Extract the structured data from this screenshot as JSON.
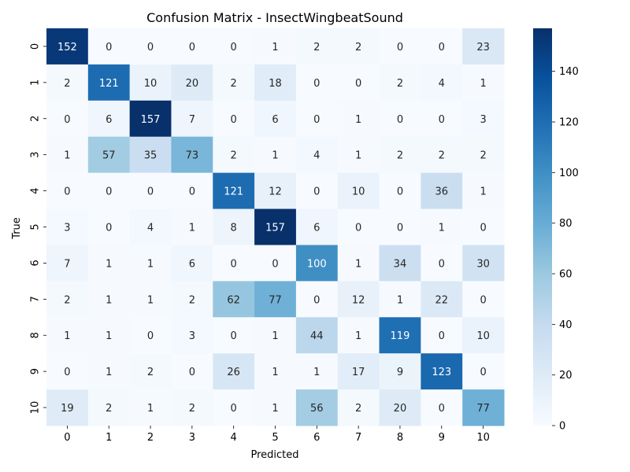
{
  "chart_data": {
    "type": "heatmap",
    "title": "Confusion Matrix - InsectWingbeatSound",
    "xlabel": "Predicted",
    "ylabel": "True",
    "x_categories": [
      "0",
      "1",
      "2",
      "3",
      "4",
      "5",
      "6",
      "7",
      "8",
      "9",
      "10"
    ],
    "y_categories": [
      "0",
      "1",
      "2",
      "3",
      "4",
      "5",
      "6",
      "7",
      "8",
      "9",
      "10"
    ],
    "matrix": [
      [
        152,
        0,
        0,
        0,
        0,
        1,
        2,
        2,
        0,
        0,
        23
      ],
      [
        2,
        121,
        10,
        20,
        2,
        18,
        0,
        0,
        2,
        4,
        1
      ],
      [
        0,
        6,
        157,
        7,
        0,
        6,
        0,
        1,
        0,
        0,
        3
      ],
      [
        1,
        57,
        35,
        73,
        2,
        1,
        4,
        1,
        2,
        2,
        2
      ],
      [
        0,
        0,
        0,
        0,
        121,
        12,
        0,
        10,
        0,
        36,
        1
      ],
      [
        3,
        0,
        4,
        1,
        8,
        157,
        6,
        0,
        0,
        1,
        0
      ],
      [
        7,
        1,
        1,
        6,
        0,
        0,
        100,
        1,
        34,
        0,
        30
      ],
      [
        2,
        1,
        1,
        2,
        62,
        77,
        0,
        12,
        1,
        22,
        0
      ],
      [
        1,
        1,
        0,
        3,
        0,
        1,
        44,
        1,
        119,
        0,
        10
      ],
      [
        0,
        1,
        2,
        0,
        26,
        1,
        1,
        17,
        9,
        123,
        0
      ],
      [
        19,
        2,
        1,
        2,
        0,
        1,
        56,
        2,
        20,
        0,
        77
      ]
    ],
    "vmin": 0,
    "vmax": 157,
    "colormap": "Blues",
    "colorbar_ticks": [
      0,
      20,
      40,
      60,
      80,
      100,
      120,
      140
    ],
    "annotations": true,
    "grid": false
  }
}
